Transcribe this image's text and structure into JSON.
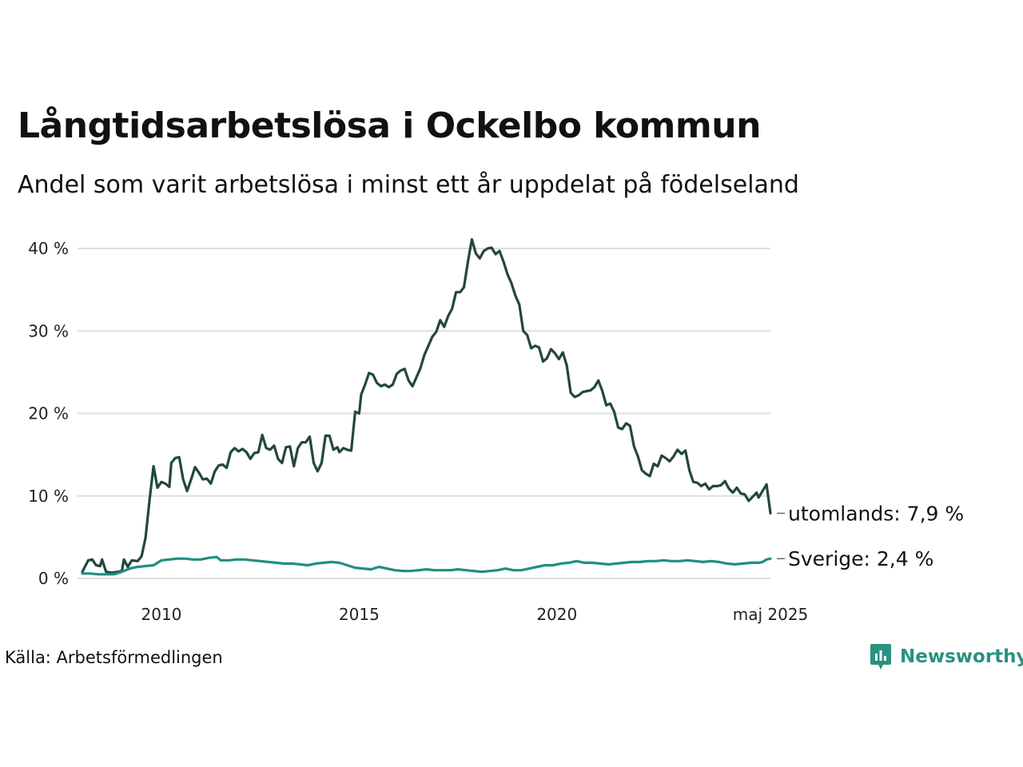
{
  "title": "Långtidsarbetslösa i Ockelbo kommun",
  "subtitle": "Andel som varit arbetslösa i minst ett år uppdelat på födelseland",
  "source": "Källa: Arbetsförmedlingen",
  "brand": {
    "name": "Newsworthy",
    "icon": "newsworthy-logo-icon",
    "color": "#2a9180"
  },
  "chart_data": {
    "type": "line",
    "x_unit": "year",
    "xlim": [
      2008.0,
      2025.4
    ],
    "ylim": [
      0,
      40
    ],
    "y_ticks": [
      {
        "value": 0,
        "label": "0 %"
      },
      {
        "value": 10,
        "label": "10 %"
      },
      {
        "value": 20,
        "label": "20 %"
      },
      {
        "value": 30,
        "label": "30 %"
      },
      {
        "value": 40,
        "label": "40 %"
      }
    ],
    "x_ticks": [
      {
        "value": 2010,
        "label": "2010"
      },
      {
        "value": 2015,
        "label": "2015"
      },
      {
        "value": 2020,
        "label": "2020"
      },
      {
        "value": 2025.4,
        "label": "maj 2025"
      }
    ],
    "grid": "horizontal",
    "series": [
      {
        "name": "utomlands",
        "end_label": "utomlands: 7,9 %",
        "color": "#22473f",
        "points": [
          [
            2008.0,
            0.8
          ],
          [
            2008.15,
            2.2
          ],
          [
            2008.25,
            2.3
          ],
          [
            2008.35,
            1.6
          ],
          [
            2008.45,
            1.5
          ],
          [
            2008.5,
            2.3
          ],
          [
            2008.6,
            0.8
          ],
          [
            2008.75,
            0.7
          ],
          [
            2008.9,
            0.8
          ],
          [
            2009.0,
            0.9
          ],
          [
            2009.05,
            2.3
          ],
          [
            2009.15,
            1.4
          ],
          [
            2009.25,
            2.2
          ],
          [
            2009.4,
            2.1
          ],
          [
            2009.5,
            2.7
          ],
          [
            2009.6,
            5.0
          ],
          [
            2009.7,
            9.5
          ],
          [
            2009.8,
            13.6
          ],
          [
            2009.9,
            11.0
          ],
          [
            2010.0,
            11.7
          ],
          [
            2010.1,
            11.5
          ],
          [
            2010.2,
            11.1
          ],
          [
            2010.25,
            14.0
          ],
          [
            2010.35,
            14.6
          ],
          [
            2010.45,
            14.7
          ],
          [
            2010.55,
            12.0
          ],
          [
            2010.65,
            10.6
          ],
          [
            2010.75,
            12.0
          ],
          [
            2010.85,
            13.5
          ],
          [
            2010.95,
            12.8
          ],
          [
            2011.05,
            12.0
          ],
          [
            2011.15,
            12.1
          ],
          [
            2011.25,
            11.5
          ],
          [
            2011.35,
            13.0
          ],
          [
            2011.45,
            13.7
          ],
          [
            2011.55,
            13.8
          ],
          [
            2011.65,
            13.4
          ],
          [
            2011.75,
            15.3
          ],
          [
            2011.85,
            15.8
          ],
          [
            2011.95,
            15.4
          ],
          [
            2012.05,
            15.7
          ],
          [
            2012.15,
            15.3
          ],
          [
            2012.25,
            14.5
          ],
          [
            2012.35,
            15.2
          ],
          [
            2012.45,
            15.3
          ],
          [
            2012.55,
            17.4
          ],
          [
            2012.65,
            15.8
          ],
          [
            2012.75,
            15.6
          ],
          [
            2012.85,
            16.1
          ],
          [
            2012.95,
            14.5
          ],
          [
            2013.05,
            14.0
          ],
          [
            2013.15,
            15.9
          ],
          [
            2013.25,
            16.0
          ],
          [
            2013.35,
            13.6
          ],
          [
            2013.45,
            15.8
          ],
          [
            2013.55,
            16.5
          ],
          [
            2013.65,
            16.5
          ],
          [
            2013.75,
            17.2
          ],
          [
            2013.85,
            14.0
          ],
          [
            2013.95,
            13.0
          ],
          [
            2014.05,
            14.0
          ],
          [
            2014.15,
            17.3
          ],
          [
            2014.25,
            17.3
          ],
          [
            2014.35,
            15.6
          ],
          [
            2014.45,
            15.9
          ],
          [
            2014.5,
            15.3
          ],
          [
            2014.6,
            15.8
          ],
          [
            2014.7,
            15.6
          ],
          [
            2014.8,
            15.5
          ],
          [
            2014.9,
            20.2
          ],
          [
            2015.0,
            20.0
          ],
          [
            2015.05,
            22.3
          ],
          [
            2015.15,
            23.5
          ],
          [
            2015.25,
            24.9
          ],
          [
            2015.35,
            24.7
          ],
          [
            2015.45,
            23.7
          ],
          [
            2015.55,
            23.3
          ],
          [
            2015.65,
            23.5
          ],
          [
            2015.75,
            23.2
          ],
          [
            2015.85,
            23.5
          ],
          [
            2015.95,
            24.8
          ],
          [
            2016.05,
            25.2
          ],
          [
            2016.15,
            25.4
          ],
          [
            2016.25,
            24.0
          ],
          [
            2016.35,
            23.3
          ],
          [
            2016.45,
            24.4
          ],
          [
            2016.55,
            25.5
          ],
          [
            2016.65,
            27.1
          ],
          [
            2016.75,
            28.2
          ],
          [
            2016.85,
            29.3
          ],
          [
            2016.95,
            29.9
          ],
          [
            2017.05,
            31.3
          ],
          [
            2017.15,
            30.5
          ],
          [
            2017.25,
            31.8
          ],
          [
            2017.35,
            32.7
          ],
          [
            2017.45,
            34.7
          ],
          [
            2017.55,
            34.7
          ],
          [
            2017.65,
            35.3
          ],
          [
            2017.75,
            38.4
          ],
          [
            2017.85,
            41.1
          ],
          [
            2017.95,
            39.4
          ],
          [
            2018.05,
            38.8
          ],
          [
            2018.15,
            39.7
          ],
          [
            2018.25,
            40.0
          ],
          [
            2018.35,
            40.1
          ],
          [
            2018.45,
            39.3
          ],
          [
            2018.55,
            39.7
          ],
          [
            2018.65,
            38.4
          ],
          [
            2018.75,
            36.9
          ],
          [
            2018.85,
            35.8
          ],
          [
            2018.95,
            34.3
          ],
          [
            2019.05,
            33.2
          ],
          [
            2019.15,
            30.0
          ],
          [
            2019.25,
            29.5
          ],
          [
            2019.35,
            27.9
          ],
          [
            2019.45,
            28.2
          ],
          [
            2019.55,
            28.0
          ],
          [
            2019.65,
            26.3
          ],
          [
            2019.75,
            26.7
          ],
          [
            2019.85,
            27.8
          ],
          [
            2019.95,
            27.3
          ],
          [
            2020.05,
            26.6
          ],
          [
            2020.15,
            27.4
          ],
          [
            2020.25,
            25.8
          ],
          [
            2020.35,
            22.5
          ],
          [
            2020.45,
            22.0
          ],
          [
            2020.55,
            22.2
          ],
          [
            2020.65,
            22.6
          ],
          [
            2020.75,
            22.7
          ],
          [
            2020.85,
            22.8
          ],
          [
            2020.95,
            23.2
          ],
          [
            2021.05,
            24.0
          ],
          [
            2021.15,
            22.7
          ],
          [
            2021.25,
            21.0
          ],
          [
            2021.35,
            21.2
          ],
          [
            2021.45,
            20.2
          ],
          [
            2021.55,
            18.3
          ],
          [
            2021.65,
            18.1
          ],
          [
            2021.75,
            18.8
          ],
          [
            2021.85,
            18.5
          ],
          [
            2021.95,
            16.0
          ],
          [
            2022.05,
            14.8
          ],
          [
            2022.15,
            13.1
          ],
          [
            2022.25,
            12.7
          ],
          [
            2022.35,
            12.4
          ],
          [
            2022.45,
            13.9
          ],
          [
            2022.55,
            13.6
          ],
          [
            2022.65,
            14.9
          ],
          [
            2022.75,
            14.6
          ],
          [
            2022.85,
            14.2
          ],
          [
            2022.95,
            14.8
          ],
          [
            2023.05,
            15.6
          ],
          [
            2023.15,
            15.1
          ],
          [
            2023.25,
            15.5
          ],
          [
            2023.35,
            13.1
          ],
          [
            2023.45,
            11.7
          ],
          [
            2023.55,
            11.6
          ],
          [
            2023.65,
            11.2
          ],
          [
            2023.75,
            11.5
          ],
          [
            2023.85,
            10.8
          ],
          [
            2023.95,
            11.2
          ],
          [
            2024.05,
            11.2
          ],
          [
            2024.15,
            11.3
          ],
          [
            2024.25,
            11.8
          ],
          [
            2024.35,
            10.9
          ],
          [
            2024.45,
            10.4
          ],
          [
            2024.55,
            11.0
          ],
          [
            2024.65,
            10.3
          ],
          [
            2024.75,
            10.2
          ],
          [
            2024.85,
            9.4
          ],
          [
            2024.95,
            9.9
          ],
          [
            2025.05,
            10.4
          ],
          [
            2025.1,
            9.8
          ],
          [
            2025.2,
            10.6
          ],
          [
            2025.3,
            11.4
          ],
          [
            2025.4,
            7.9
          ]
        ]
      },
      {
        "name": "Sverige",
        "end_label": "Sverige: 2,4 %",
        "color": "#1f8f7f",
        "points": [
          [
            2008.0,
            0.6
          ],
          [
            2008.2,
            0.6
          ],
          [
            2008.4,
            0.5
          ],
          [
            2008.6,
            0.5
          ],
          [
            2008.8,
            0.5
          ],
          [
            2009.0,
            0.8
          ],
          [
            2009.2,
            1.2
          ],
          [
            2009.4,
            1.4
          ],
          [
            2009.6,
            1.5
          ],
          [
            2009.8,
            1.6
          ],
          [
            2010.0,
            2.2
          ],
          [
            2010.2,
            2.3
          ],
          [
            2010.4,
            2.4
          ],
          [
            2010.6,
            2.4
          ],
          [
            2010.8,
            2.3
          ],
          [
            2011.0,
            2.3
          ],
          [
            2011.2,
            2.5
          ],
          [
            2011.4,
            2.6
          ],
          [
            2011.5,
            2.2
          ],
          [
            2011.7,
            2.2
          ],
          [
            2011.9,
            2.3
          ],
          [
            2012.1,
            2.3
          ],
          [
            2012.3,
            2.2
          ],
          [
            2012.5,
            2.1
          ],
          [
            2012.7,
            2.0
          ],
          [
            2012.9,
            1.9
          ],
          [
            2013.1,
            1.8
          ],
          [
            2013.3,
            1.8
          ],
          [
            2013.5,
            1.7
          ],
          [
            2013.7,
            1.6
          ],
          [
            2013.9,
            1.8
          ],
          [
            2014.1,
            1.9
          ],
          [
            2014.3,
            2.0
          ],
          [
            2014.5,
            1.9
          ],
          [
            2014.7,
            1.6
          ],
          [
            2014.9,
            1.3
          ],
          [
            2015.1,
            1.2
          ],
          [
            2015.3,
            1.1
          ],
          [
            2015.5,
            1.4
          ],
          [
            2015.7,
            1.2
          ],
          [
            2015.9,
            1.0
          ],
          [
            2016.1,
            0.9
          ],
          [
            2016.3,
            0.9
          ],
          [
            2016.5,
            1.0
          ],
          [
            2016.7,
            1.1
          ],
          [
            2016.9,
            1.0
          ],
          [
            2017.1,
            1.0
          ],
          [
            2017.3,
            1.0
          ],
          [
            2017.5,
            1.1
          ],
          [
            2017.7,
            1.0
          ],
          [
            2017.9,
            0.9
          ],
          [
            2018.1,
            0.8
          ],
          [
            2018.3,
            0.9
          ],
          [
            2018.5,
            1.0
          ],
          [
            2018.7,
            1.2
          ],
          [
            2018.9,
            1.0
          ],
          [
            2019.1,
            1.0
          ],
          [
            2019.3,
            1.2
          ],
          [
            2019.5,
            1.4
          ],
          [
            2019.7,
            1.6
          ],
          [
            2019.9,
            1.6
          ],
          [
            2020.1,
            1.8
          ],
          [
            2020.3,
            1.9
          ],
          [
            2020.5,
            2.1
          ],
          [
            2020.7,
            1.9
          ],
          [
            2020.9,
            1.9
          ],
          [
            2021.1,
            1.8
          ],
          [
            2021.3,
            1.7
          ],
          [
            2021.5,
            1.8
          ],
          [
            2021.7,
            1.9
          ],
          [
            2021.9,
            2.0
          ],
          [
            2022.1,
            2.0
          ],
          [
            2022.3,
            2.1
          ],
          [
            2022.5,
            2.1
          ],
          [
            2022.7,
            2.2
          ],
          [
            2022.9,
            2.1
          ],
          [
            2023.1,
            2.1
          ],
          [
            2023.3,
            2.2
          ],
          [
            2023.5,
            2.1
          ],
          [
            2023.7,
            2.0
          ],
          [
            2023.9,
            2.1
          ],
          [
            2024.1,
            2.0
          ],
          [
            2024.3,
            1.8
          ],
          [
            2024.5,
            1.7
          ],
          [
            2024.7,
            1.8
          ],
          [
            2024.9,
            1.9
          ],
          [
            2025.1,
            1.9
          ],
          [
            2025.2,
            2.0
          ],
          [
            2025.3,
            2.3
          ],
          [
            2025.4,
            2.4
          ]
        ]
      }
    ]
  }
}
